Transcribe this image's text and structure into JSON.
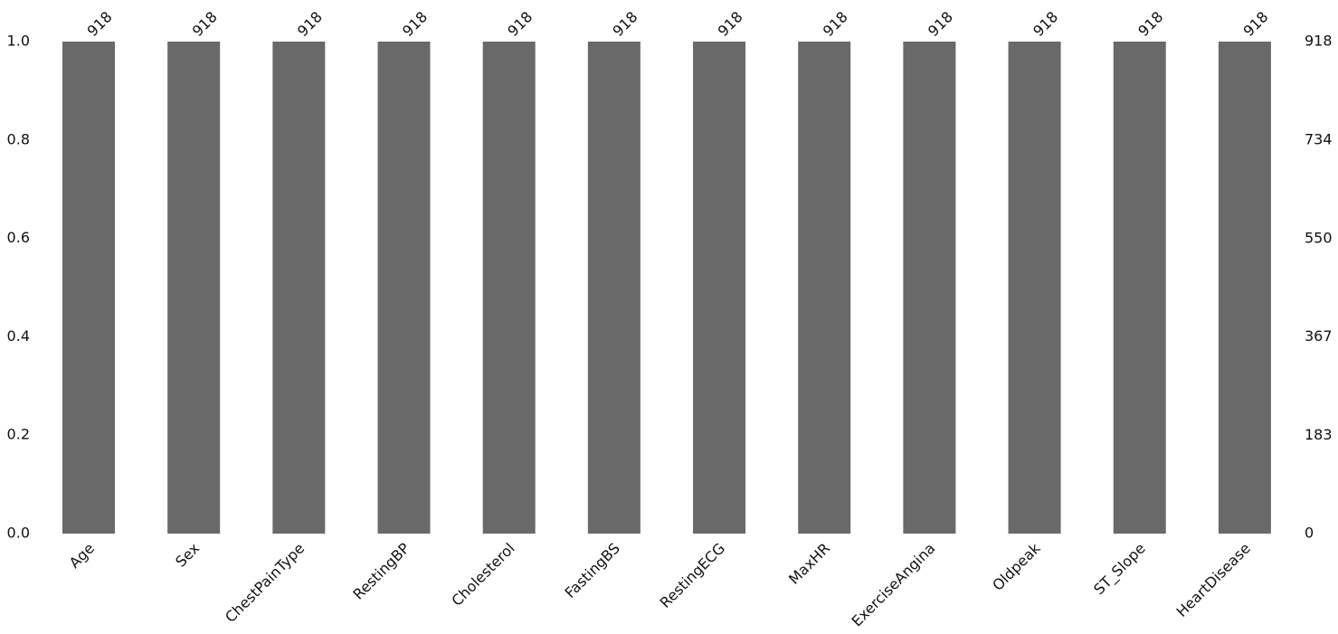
{
  "chart_data": {
    "type": "bar",
    "categories": [
      "Age",
      "Sex",
      "ChestPainType",
      "RestingBP",
      "Cholesterol",
      "FastingBS",
      "RestingECG",
      "MaxHR",
      "ExerciseAngina",
      "Oldpeak",
      "ST_Slope",
      "HeartDisease"
    ],
    "series": [
      {
        "axis": "y2",
        "color": "dimgray",
        "values": [
          918,
          918,
          918,
          918,
          918,
          918,
          918,
          918,
          918,
          918,
          918,
          918
        ]
      }
    ],
    "ylim": [
      0,
      1
    ],
    "yticks": [
      {
        "value": 0,
        "label": "0.0"
      },
      {
        "value": 0.2,
        "label": "0.2"
      },
      {
        "value": 0.4,
        "label": "0.4"
      },
      {
        "value": 0.6,
        "label": "0.6"
      },
      {
        "value": 0.8,
        "label": "0.8"
      },
      {
        "value": 1,
        "label": "1.0"
      }
    ],
    "y2lim": [
      0,
      918
    ],
    "y2ticks": [
      0,
      183,
      367,
      550,
      734,
      918
    ],
    "grid": false
  }
}
